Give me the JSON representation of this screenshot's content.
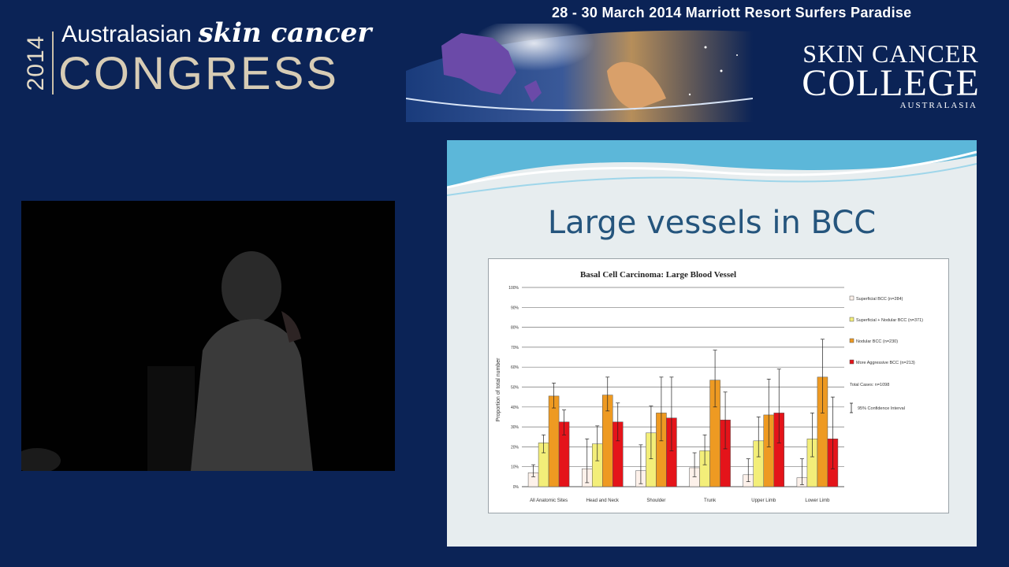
{
  "header": {
    "year": "2014",
    "congress_top_plain": "Australasian",
    "congress_top_script": "skin cancer",
    "congress_bottom": "CONGRESS",
    "date_location": "28 - 30 March 2014 Marriott Resort Surfers Paradise",
    "college_line1": "SKIN CANCER",
    "college_line2": "COLLEGE",
    "college_line3": "AUSTRALASIA"
  },
  "slide": {
    "title": "Large vessels in BCC"
  },
  "colors": {
    "background": "#0b2356",
    "superficial": "#fdf1ea",
    "superficial_nodular": "#f3ee79",
    "nodular": "#ee9a22",
    "aggressive": "#e4141a"
  },
  "chart_data": {
    "type": "bar",
    "title": "Basal Cell Carcinoma: Large Blood Vessel",
    "ylabel": "Proportion of total number",
    "xlabel": "",
    "ylim": [
      0,
      100
    ],
    "yticks": [
      "0%",
      "10%",
      "20%",
      "30%",
      "40%",
      "50%",
      "60%",
      "70%",
      "80%",
      "90%",
      "100%"
    ],
    "grid": true,
    "legend_position": "right",
    "categories": [
      "All Anatomic Sites",
      "Head and Neck",
      "Shoulder",
      "Trunk",
      "Upper Limb",
      "Lower Limb"
    ],
    "series": [
      {
        "name": "Superficial BCC (n=284)",
        "color": "#fdf1ea",
        "values": [
          7,
          9,
          8,
          9.5,
          6,
          4.5
        ],
        "err_low": [
          5,
          2,
          1.5,
          5,
          2.5,
          1
        ],
        "err_high": [
          11,
          24,
          21,
          17,
          14,
          14
        ]
      },
      {
        "name": "Superficial + Nodular BCC (n=371)",
        "color": "#f3ee79",
        "values": [
          22,
          21.5,
          27,
          18,
          23,
          24
        ],
        "err_low": [
          17,
          13,
          14,
          11,
          15,
          15
        ],
        "err_high": [
          26,
          30.5,
          40.5,
          26,
          35,
          37
        ]
      },
      {
        "name": "Nodular BCC (n=230)",
        "color": "#ee9a22",
        "values": [
          45.5,
          46,
          37,
          53.5,
          36,
          55
        ],
        "err_low": [
          39.5,
          38,
          23,
          40,
          20,
          37
        ],
        "err_high": [
          52,
          55,
          55,
          68.5,
          54,
          74
        ]
      },
      {
        "name": "More Aggressive BCC (n=213)",
        "color": "#e4141a",
        "values": [
          32.5,
          32.5,
          34.5,
          33.5,
          37,
          24
        ],
        "err_low": [
          26,
          23,
          18,
          19,
          22,
          9
        ],
        "err_high": [
          38.5,
          42,
          55,
          47.5,
          59,
          45
        ]
      }
    ],
    "notes": [
      "Total Cases: n=1098",
      "95% Confidence Interval"
    ]
  }
}
